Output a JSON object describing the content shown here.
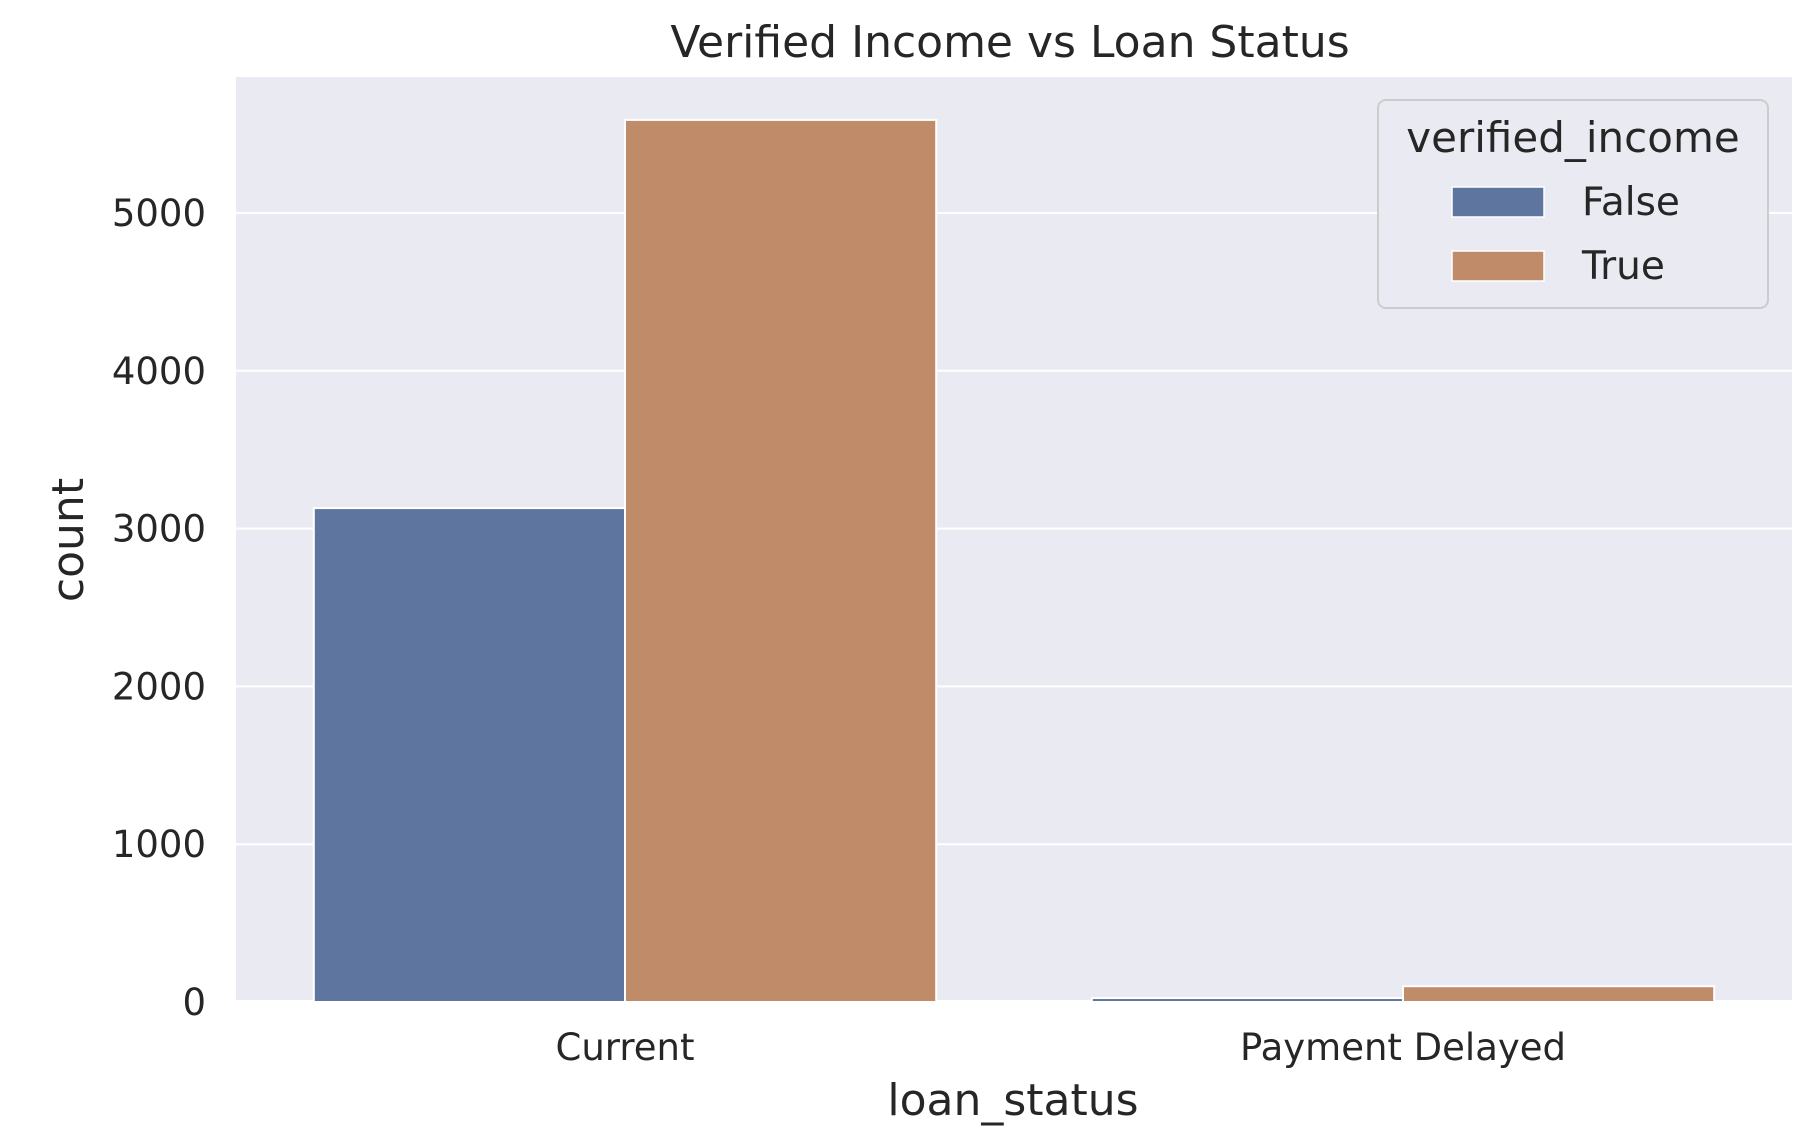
{
  "chart_data": {
    "type": "bar",
    "title": "Verified Income vs Loan Status",
    "xlabel": "loan_status",
    "ylabel": "count",
    "categories": [
      "Current",
      "Payment Delayed"
    ],
    "series": [
      {
        "name": "False",
        "color": "#5e75a0",
        "values": [
          3130,
          25
        ]
      },
      {
        "name": "True",
        "color": "#c08b69",
        "values": [
          5590,
          100
        ]
      }
    ],
    "ylim": [
      0,
      5900
    ],
    "yticks": [
      0,
      1000,
      2000,
      3000,
      4000,
      5000
    ],
    "grid": true,
    "plot_background": "#eaeaf2",
    "legend": {
      "title": "verified_income",
      "placement": "top-right"
    }
  }
}
